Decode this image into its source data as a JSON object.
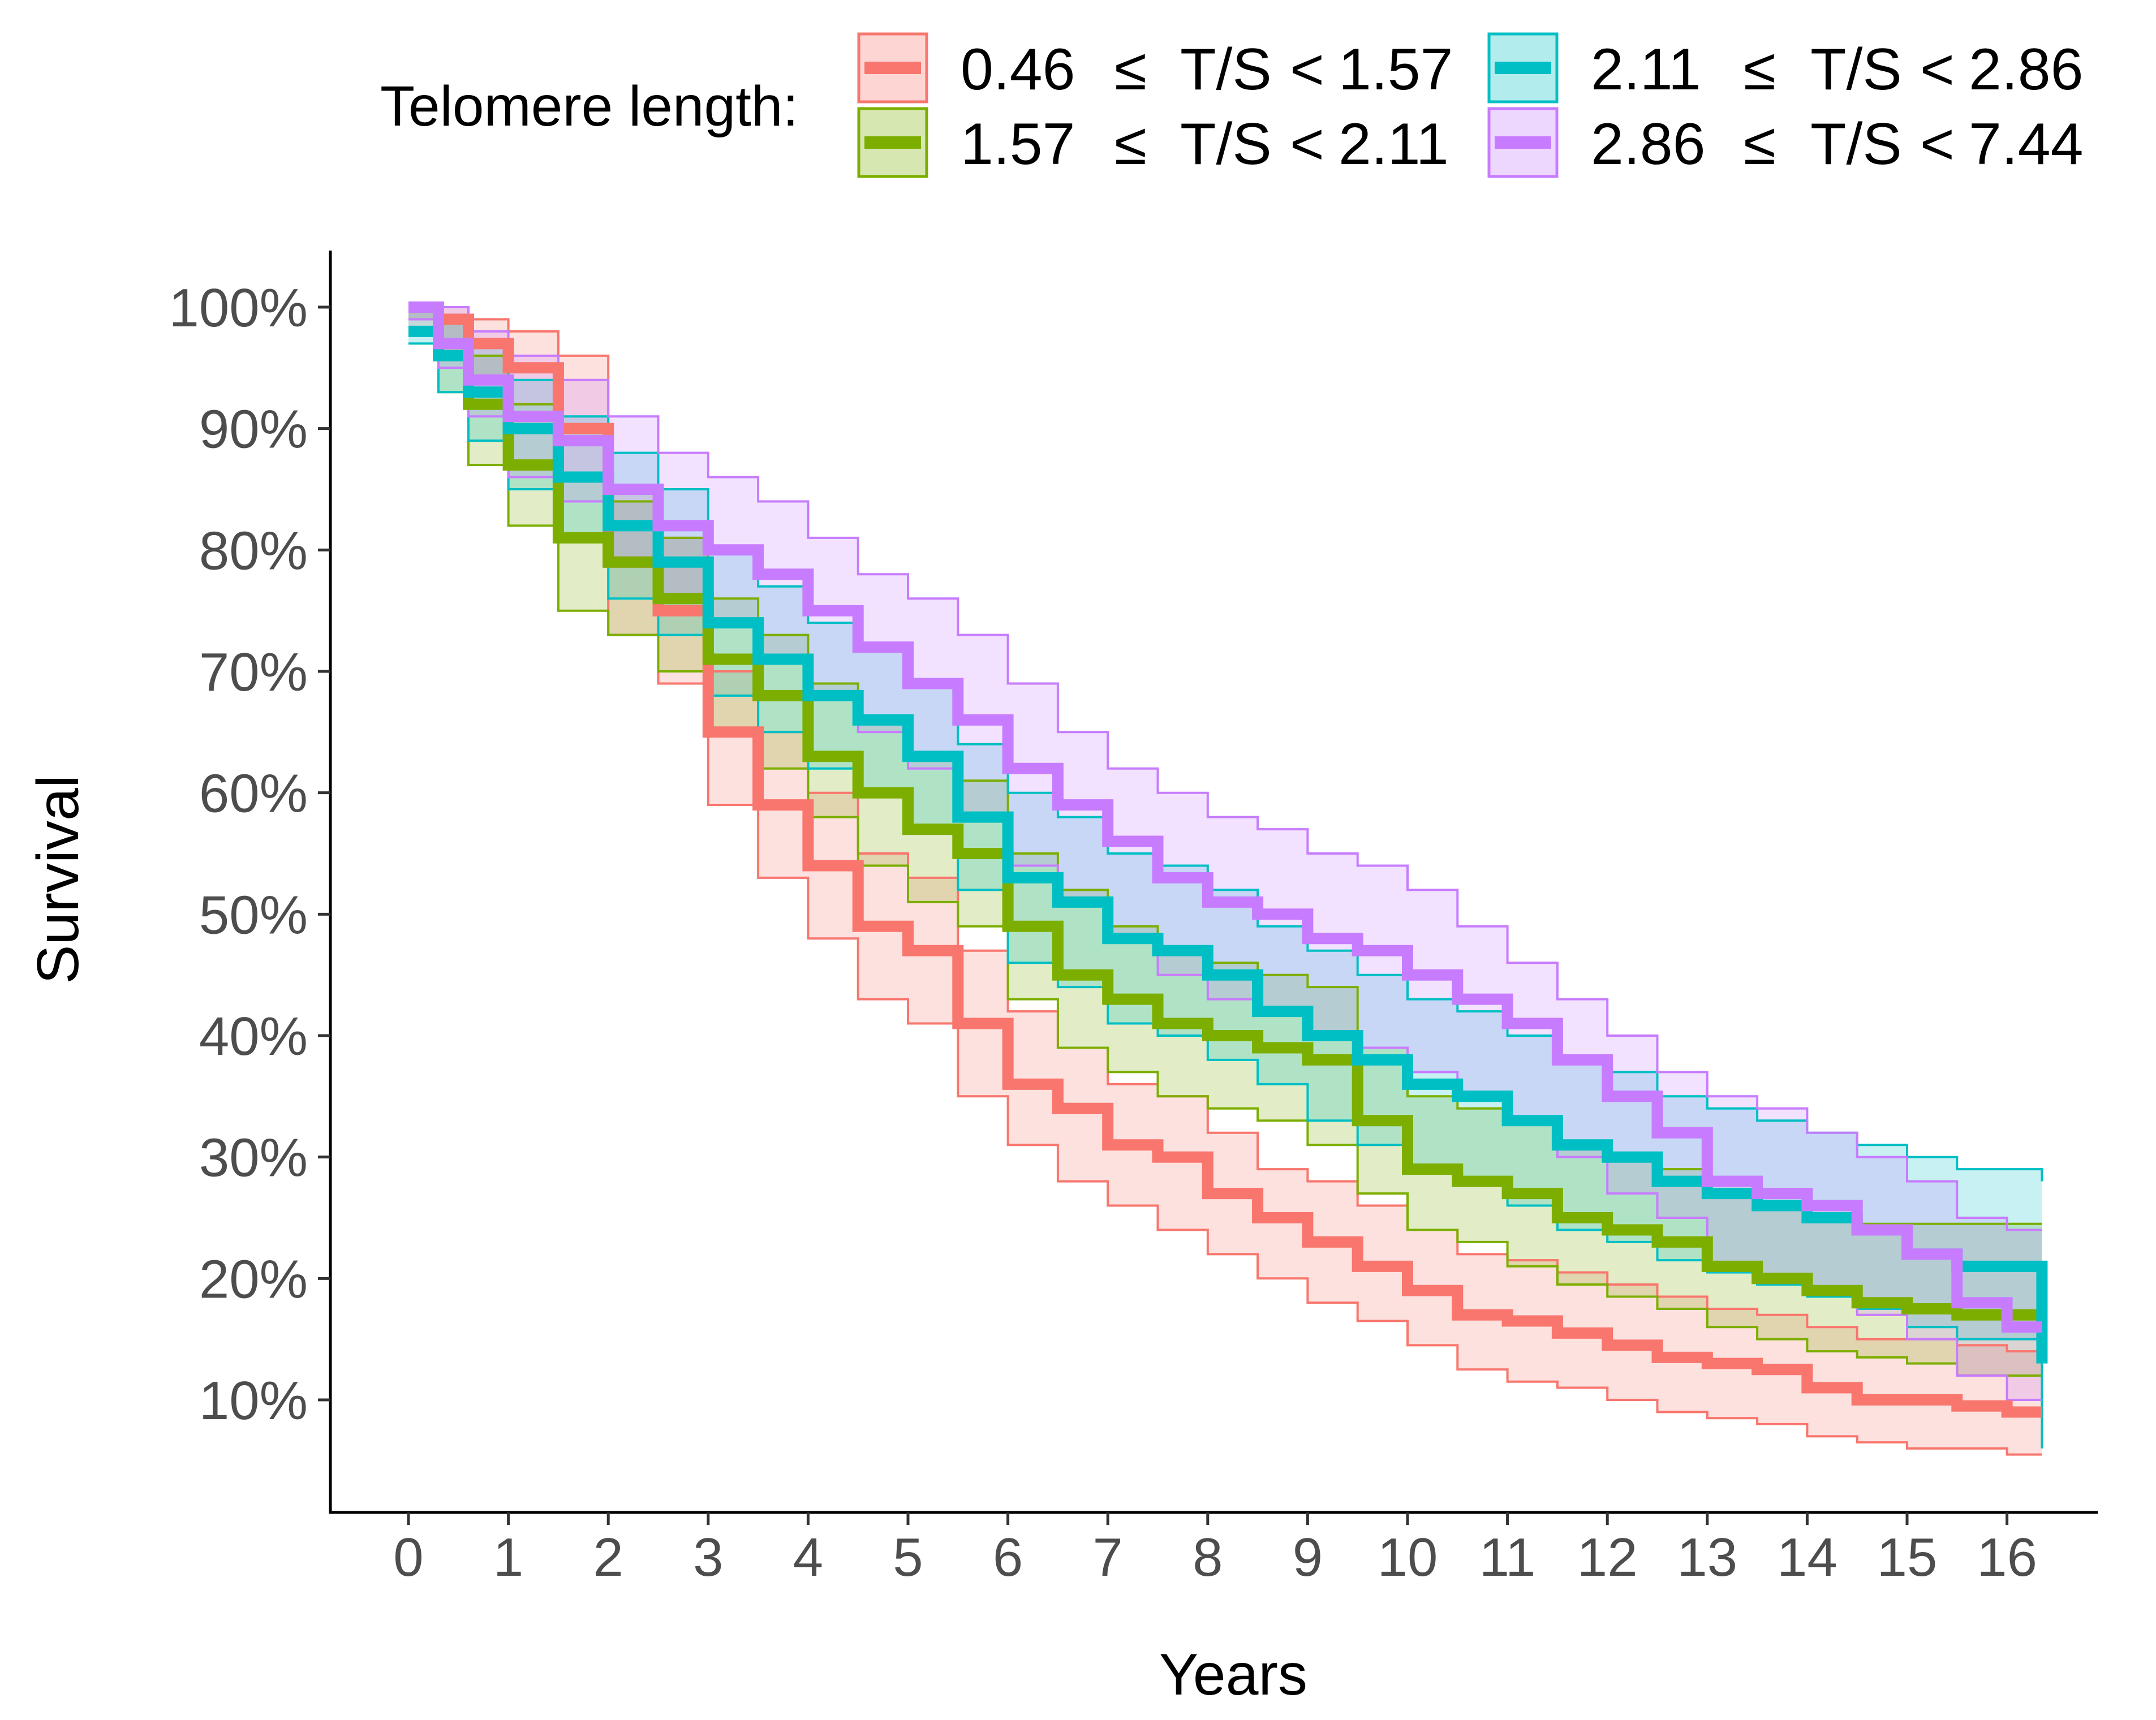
{
  "chart_data": {
    "type": "line",
    "subtype": "kaplan-meier survival curves with confidence bands",
    "xlabel": "Years",
    "ylabel": "Survival",
    "xlim": [
      -0.8,
      17.0
    ],
    "ylim": [
      3.0,
      105.0
    ],
    "x_ticks": [
      "0",
      "1",
      "2",
      "3",
      "4",
      "5",
      "6",
      "7",
      "8",
      "9",
      "10",
      "11",
      "12",
      "13",
      "14",
      "15",
      "16"
    ],
    "y_ticks": [
      "10%",
      "20%",
      "30%",
      "40%",
      "50%",
      "60%",
      "70%",
      "80%",
      "90%",
      "100%"
    ],
    "grid": false,
    "legend": {
      "title": "Telomere length:",
      "position": "top",
      "entries": [
        {
          "low": "0.46",
          "high": "1.57",
          "le": "≤",
          "lt": "<",
          "var": "T/S"
        },
        {
          "low": "1.57",
          "high": "2.11",
          "le": "≤",
          "lt": "<",
          "var": "T/S"
        },
        {
          "low": "2.11",
          "high": "2.86",
          "le": "≤",
          "lt": "<",
          "var": "T/S"
        },
        {
          "low": "2.86",
          "high": "7.44",
          "le": "≤",
          "lt": "<",
          "var": "T/S"
        }
      ]
    },
    "series": [
      {
        "name": "0.46 ≤ T/S < 1.57",
        "color": "#F8766D",
        "x": [
          0,
          0.3,
          0.6,
          1.0,
          1.5,
          2.0,
          2.5,
          3.0,
          3.5,
          4.0,
          4.5,
          5.0,
          5.5,
          6.0,
          6.5,
          7.0,
          7.5,
          8.0,
          8.5,
          9.0,
          9.5,
          10.0,
          10.5,
          11.0,
          11.5,
          12.0,
          12.5,
          13.0,
          13.5,
          14.0,
          14.5,
          15.0,
          15.5,
          16.0,
          16.35
        ],
        "y": [
          100,
          99,
          97,
          95,
          90,
          79,
          75,
          65,
          59,
          54,
          49,
          47,
          41,
          36,
          34,
          31,
          30,
          27,
          25,
          23,
          21,
          19,
          17,
          16.5,
          15.5,
          14.5,
          13.5,
          13,
          12.5,
          11,
          10,
          10,
          9.5,
          9,
          9
        ],
        "upper": [
          100,
          100,
          99,
          98,
          96,
          85,
          81,
          70,
          65,
          60,
          55,
          53,
          47,
          42,
          39,
          36,
          35,
          32,
          29,
          28,
          26,
          24,
          22,
          21.5,
          20.5,
          19.5,
          18.5,
          17.5,
          17,
          16,
          15,
          15,
          14.5,
          14,
          14
        ],
        "lower": [
          98,
          96,
          94,
          92,
          86,
          73,
          69,
          59,
          53,
          48,
          43,
          41,
          35,
          31,
          28,
          26,
          24,
          22,
          20,
          18,
          16.5,
          14.5,
          12.5,
          11.5,
          11,
          10,
          9,
          8.5,
          8,
          7,
          6.5,
          6,
          6,
          5.5,
          5.5
        ]
      },
      {
        "name": "1.57 ≤ T/S < 2.11",
        "color": "#7CAE00",
        "x": [
          0,
          0.3,
          0.6,
          1.0,
          1.5,
          2.0,
          2.5,
          3.0,
          3.5,
          4.0,
          4.5,
          5.0,
          5.5,
          6.0,
          6.5,
          7.0,
          7.5,
          8.0,
          8.5,
          9.0,
          9.5,
          10.0,
          10.5,
          11.0,
          11.5,
          12.0,
          12.5,
          13.0,
          13.5,
          14.0,
          14.5,
          15.0,
          15.5,
          16.0,
          16.35
        ],
        "y": [
          100,
          96,
          92,
          87,
          81,
          79,
          76,
          71,
          68,
          63,
          60,
          57,
          55,
          49,
          45,
          43,
          41,
          40,
          39,
          38,
          33,
          29,
          28,
          27,
          25,
          24,
          23,
          21,
          20,
          19,
          18,
          17.5,
          17,
          17,
          17
        ],
        "upper": [
          100,
          99,
          96,
          92,
          86,
          84,
          81,
          76,
          73,
          69,
          66,
          63,
          61,
          55,
          52,
          49,
          47,
          46,
          45,
          44,
          39,
          35,
          34,
          33,
          31,
          30,
          29,
          27,
          26,
          25,
          24.5,
          24.5,
          24.5,
          24.5,
          24.5
        ],
        "lower": [
          99,
          93,
          87,
          82,
          75,
          73,
          70,
          65,
          62,
          58,
          54,
          51,
          49,
          43,
          39,
          37,
          35,
          34,
          33,
          31,
          27,
          24,
          23,
          21,
          19.5,
          18.5,
          17.5,
          16,
          15,
          14,
          13.5,
          13,
          12,
          12,
          12
        ]
      },
      {
        "name": "2.11 ≤ T/S < 2.86",
        "color": "#00BFC4",
        "x": [
          0,
          0.3,
          0.6,
          1.0,
          1.5,
          2.0,
          2.5,
          3.0,
          3.5,
          4.0,
          4.5,
          5.0,
          5.5,
          6.0,
          6.5,
          7.0,
          7.5,
          8.0,
          8.5,
          9.0,
          9.5,
          10.0,
          10.5,
          11.0,
          11.5,
          12.0,
          12.5,
          13.0,
          13.5,
          14.0,
          14.5,
          15.0,
          15.5,
          16.0,
          16.35
        ],
        "y": [
          98,
          96,
          93,
          90,
          86,
          82,
          79,
          74,
          71,
          68,
          66,
          63,
          58,
          53,
          51,
          48,
          47,
          45,
          42,
          40,
          38,
          36,
          35,
          33,
          31,
          30,
          28,
          27,
          26,
          25,
          24,
          22,
          21,
          21,
          13
        ],
        "upper": [
          100,
          99,
          97,
          94,
          91,
          88,
          85,
          80,
          77,
          74,
          72,
          69,
          64,
          60,
          58,
          55,
          54,
          52,
          49,
          47,
          45,
          43,
          42,
          40,
          38,
          37,
          35,
          34,
          33,
          32,
          31,
          30,
          29,
          29,
          28
        ],
        "lower": [
          97,
          93,
          89,
          85,
          81,
          76,
          73,
          68,
          65,
          62,
          60,
          57,
          52,
          46,
          44,
          41,
          40,
          38,
          36,
          33,
          31,
          29,
          28,
          26,
          24,
          23,
          21.5,
          20.5,
          19.5,
          18.5,
          17.5,
          16,
          15,
          15,
          6
        ]
      },
      {
        "name": "2.86 ≤ T/S < 7.44",
        "color": "#C77CFF",
        "x": [
          0,
          0.3,
          0.6,
          1.0,
          1.5,
          2.0,
          2.5,
          3.0,
          3.5,
          4.0,
          4.5,
          5.0,
          5.5,
          6.0,
          6.5,
          7.0,
          7.5,
          8.0,
          8.5,
          9.0,
          9.5,
          10.0,
          10.5,
          11.0,
          11.5,
          12.0,
          12.5,
          13.0,
          13.5,
          14.0,
          14.5,
          15.0,
          15.5,
          16.0,
          16.35
        ],
        "y": [
          100,
          97,
          94,
          91,
          89,
          85,
          82,
          80,
          78,
          75,
          72,
          69,
          66,
          62,
          59,
          56,
          53,
          51,
          50,
          48,
          47,
          45,
          43,
          41,
          38,
          35,
          32,
          28,
          27,
          26,
          24,
          22,
          18,
          16,
          16
        ],
        "upper": [
          100,
          100,
          98,
          96,
          94,
          91,
          88,
          86,
          84,
          81,
          78,
          76,
          73,
          69,
          65,
          62,
          60,
          58,
          57,
          55,
          54,
          52,
          49,
          46,
          43,
          40,
          37,
          35,
          34,
          32,
          30,
          28,
          25,
          24,
          24
        ],
        "lower": [
          99,
          95,
          91,
          86,
          84,
          79,
          76,
          74,
          71,
          68,
          65,
          62,
          58,
          54,
          51,
          48,
          45,
          43,
          42,
          40,
          39,
          37,
          35,
          33,
          30,
          27,
          25,
          21,
          20,
          19,
          17,
          15,
          12,
          10,
          10
        ]
      }
    ]
  }
}
